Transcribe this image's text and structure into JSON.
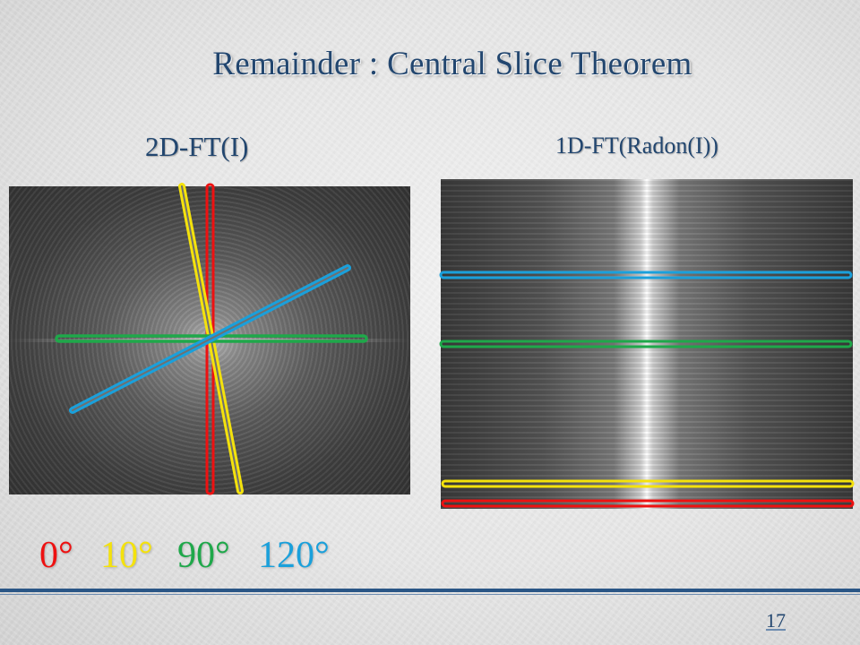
{
  "slide": {
    "title": "Remainder : Central Slice Theorem",
    "page_number": "17"
  },
  "panels": {
    "left_label": "2D-FT(I)",
    "right_label": "1D-FT(Radon(I))"
  },
  "legend": [
    {
      "label": "0°",
      "color": "#ee1111"
    },
    {
      "label": "10°",
      "color": "#f4e20c"
    },
    {
      "label": "90°",
      "color": "#1fa84a"
    },
    {
      "label": "120°",
      "color": "#1aa0db"
    }
  ]
}
